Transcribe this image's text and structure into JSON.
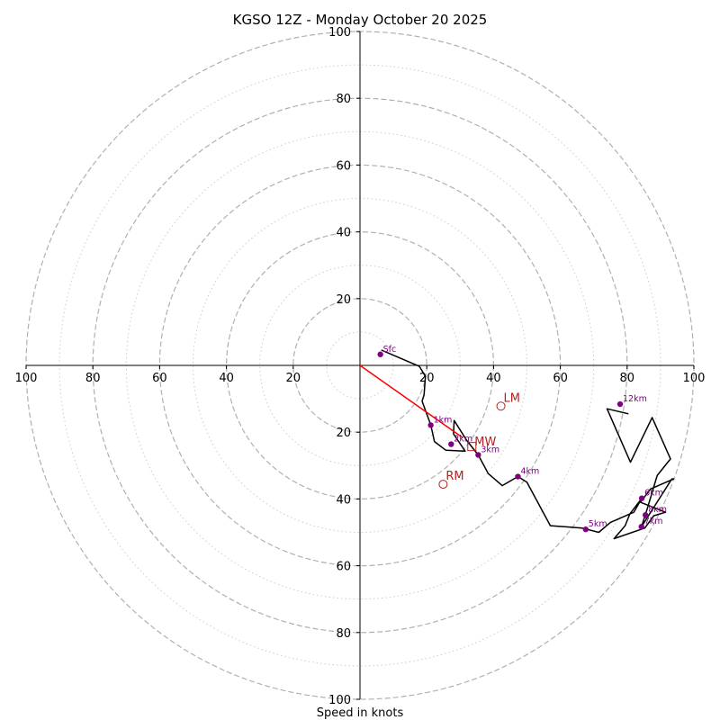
{
  "chart_data": {
    "type": "hodograph",
    "title": "KGSO 12Z - Monday October 20 2025",
    "xlabel": "Speed in knots",
    "units": "knots",
    "max_speed": 100,
    "ring_step": 20,
    "ticks": {
      "left": [
        "100",
        "80",
        "60",
        "40",
        "20"
      ],
      "right": [
        "20",
        "40",
        "60",
        "80",
        "100"
      ],
      "up": [
        "20",
        "40",
        "60",
        "80",
        "100"
      ],
      "down": [
        "20",
        "40",
        "60",
        "80",
        "100"
      ]
    },
    "hodograph_trace": {
      "color": "#000000",
      "points": [
        [
          6.4,
          4.6
        ],
        [
          17.8,
          -0.3
        ],
        [
          19.6,
          -3.3
        ],
        [
          19.2,
          -8.8
        ],
        [
          18.6,
          -10.7
        ],
        [
          21.2,
          -17.9
        ],
        [
          22.3,
          -22.8
        ],
        [
          25.7,
          -25.4
        ],
        [
          31.5,
          -25.7
        ],
        [
          28.0,
          -20.5
        ],
        [
          28.2,
          -16.5
        ],
        [
          32.0,
          -22.5
        ],
        [
          35.4,
          -26.8
        ],
        [
          38.4,
          -32.4
        ],
        [
          42.6,
          -36.0
        ],
        [
          47.3,
          -33.3
        ],
        [
          50.0,
          -35.0
        ],
        [
          57.0,
          -48.0
        ],
        [
          66.5,
          -48.7
        ],
        [
          71.5,
          -50.0
        ],
        [
          75.0,
          -47.0
        ],
        [
          82.0,
          -44.0
        ],
        [
          84.4,
          -39.8
        ],
        [
          80.8,
          -44.5
        ],
        [
          79.4,
          -48.0
        ],
        [
          76.1,
          -51.9
        ],
        [
          85.3,
          -48.7
        ],
        [
          88.0,
          -45.0
        ],
        [
          91.5,
          -44.0
        ],
        [
          84.0,
          -41.0
        ],
        [
          87.0,
          -37.0
        ],
        [
          94.0,
          -34.0
        ],
        [
          93.4,
          -34.0
        ],
        [
          84.3,
          -48.3
        ],
        [
          86.0,
          -43.0
        ],
        [
          89.0,
          -33.0
        ],
        [
          93.0,
          -28.0
        ],
        [
          87.5,
          -15.6
        ],
        [
          81.0,
          -29.0
        ],
        [
          74.0,
          -13.0
        ],
        [
          80.4,
          -14.5
        ]
      ]
    },
    "height_markers": {
      "color": "#800080",
      "points": [
        {
          "label": "Sfc",
          "u": 6.1,
          "v": 3.3
        },
        {
          "label": "1km",
          "u": 21.2,
          "v": -17.9
        },
        {
          "label": "2km",
          "u": 27.3,
          "v": -23.6
        },
        {
          "label": "3km",
          "u": 35.4,
          "v": -26.8
        },
        {
          "label": "4km",
          "u": 47.3,
          "v": -33.3
        },
        {
          "label": "5km",
          "u": 67.6,
          "v": -49.1
        },
        {
          "label": "6km",
          "u": 84.4,
          "v": -39.8
        },
        {
          "label": "7km",
          "u": 84.3,
          "v": -48.3
        },
        {
          "label": "8km",
          "u": 85.5,
          "v": -44.8
        },
        {
          "label": "12km",
          "u": 77.9,
          "v": -11.6
        }
      ]
    },
    "storm_motion": {
      "color": "#b22222",
      "mean_wind": {
        "label": "MW",
        "u": 33.5,
        "v": -24.3
      },
      "left_mover": {
        "label": "LM",
        "u": 42.2,
        "v": -12.2
      },
      "right_mover": {
        "label": "RM",
        "u": 24.9,
        "v": -35.6
      },
      "shear_vector": {
        "color": "#ff0000",
        "from_u": 0,
        "from_v": 0,
        "to_u": 30.7,
        "to_v": -21.6
      }
    },
    "grid": {
      "major_rings": [
        20,
        40,
        60,
        80,
        100
      ],
      "minor_rings": [
        10,
        30,
        50,
        70,
        90
      ],
      "color": "#b0b0b0"
    }
  }
}
